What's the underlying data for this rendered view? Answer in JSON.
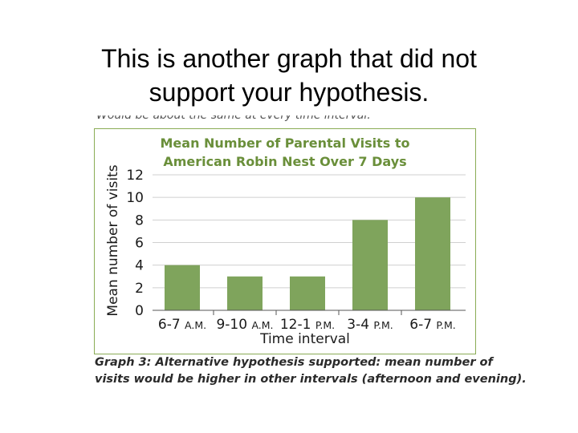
{
  "slide": {
    "title_line1": "This is another graph that did not",
    "title_line2": "support your hypothesis."
  },
  "cutoff_text": "Would be about the same at every time interval.",
  "caption": {
    "line1": "Graph 3: Alternative hypothesis supported: mean number of",
    "line2": "visits would be higher in other intervals (afternoon and evening)."
  },
  "chart_data": {
    "type": "bar",
    "title_line1": "Mean Number of Parental Visits to",
    "title_line2": "American Robin Nest Over 7 Days",
    "xlabel": "Time interval",
    "ylabel": "Mean number of visits",
    "categories": [
      "6-7 A.M.",
      "9-10 A.M.",
      "12-1 P.M.",
      "3-4 P.M.",
      "6-7 P.M."
    ],
    "values": [
      4,
      3,
      3,
      8,
      10
    ],
    "ylim": [
      0,
      12
    ],
    "yticks": [
      0,
      2,
      4,
      6,
      8,
      10,
      12
    ],
    "bar_color": "#7fa45c",
    "title_color": "#6a8f3a",
    "border_color": "#8aac55",
    "grid": true
  }
}
